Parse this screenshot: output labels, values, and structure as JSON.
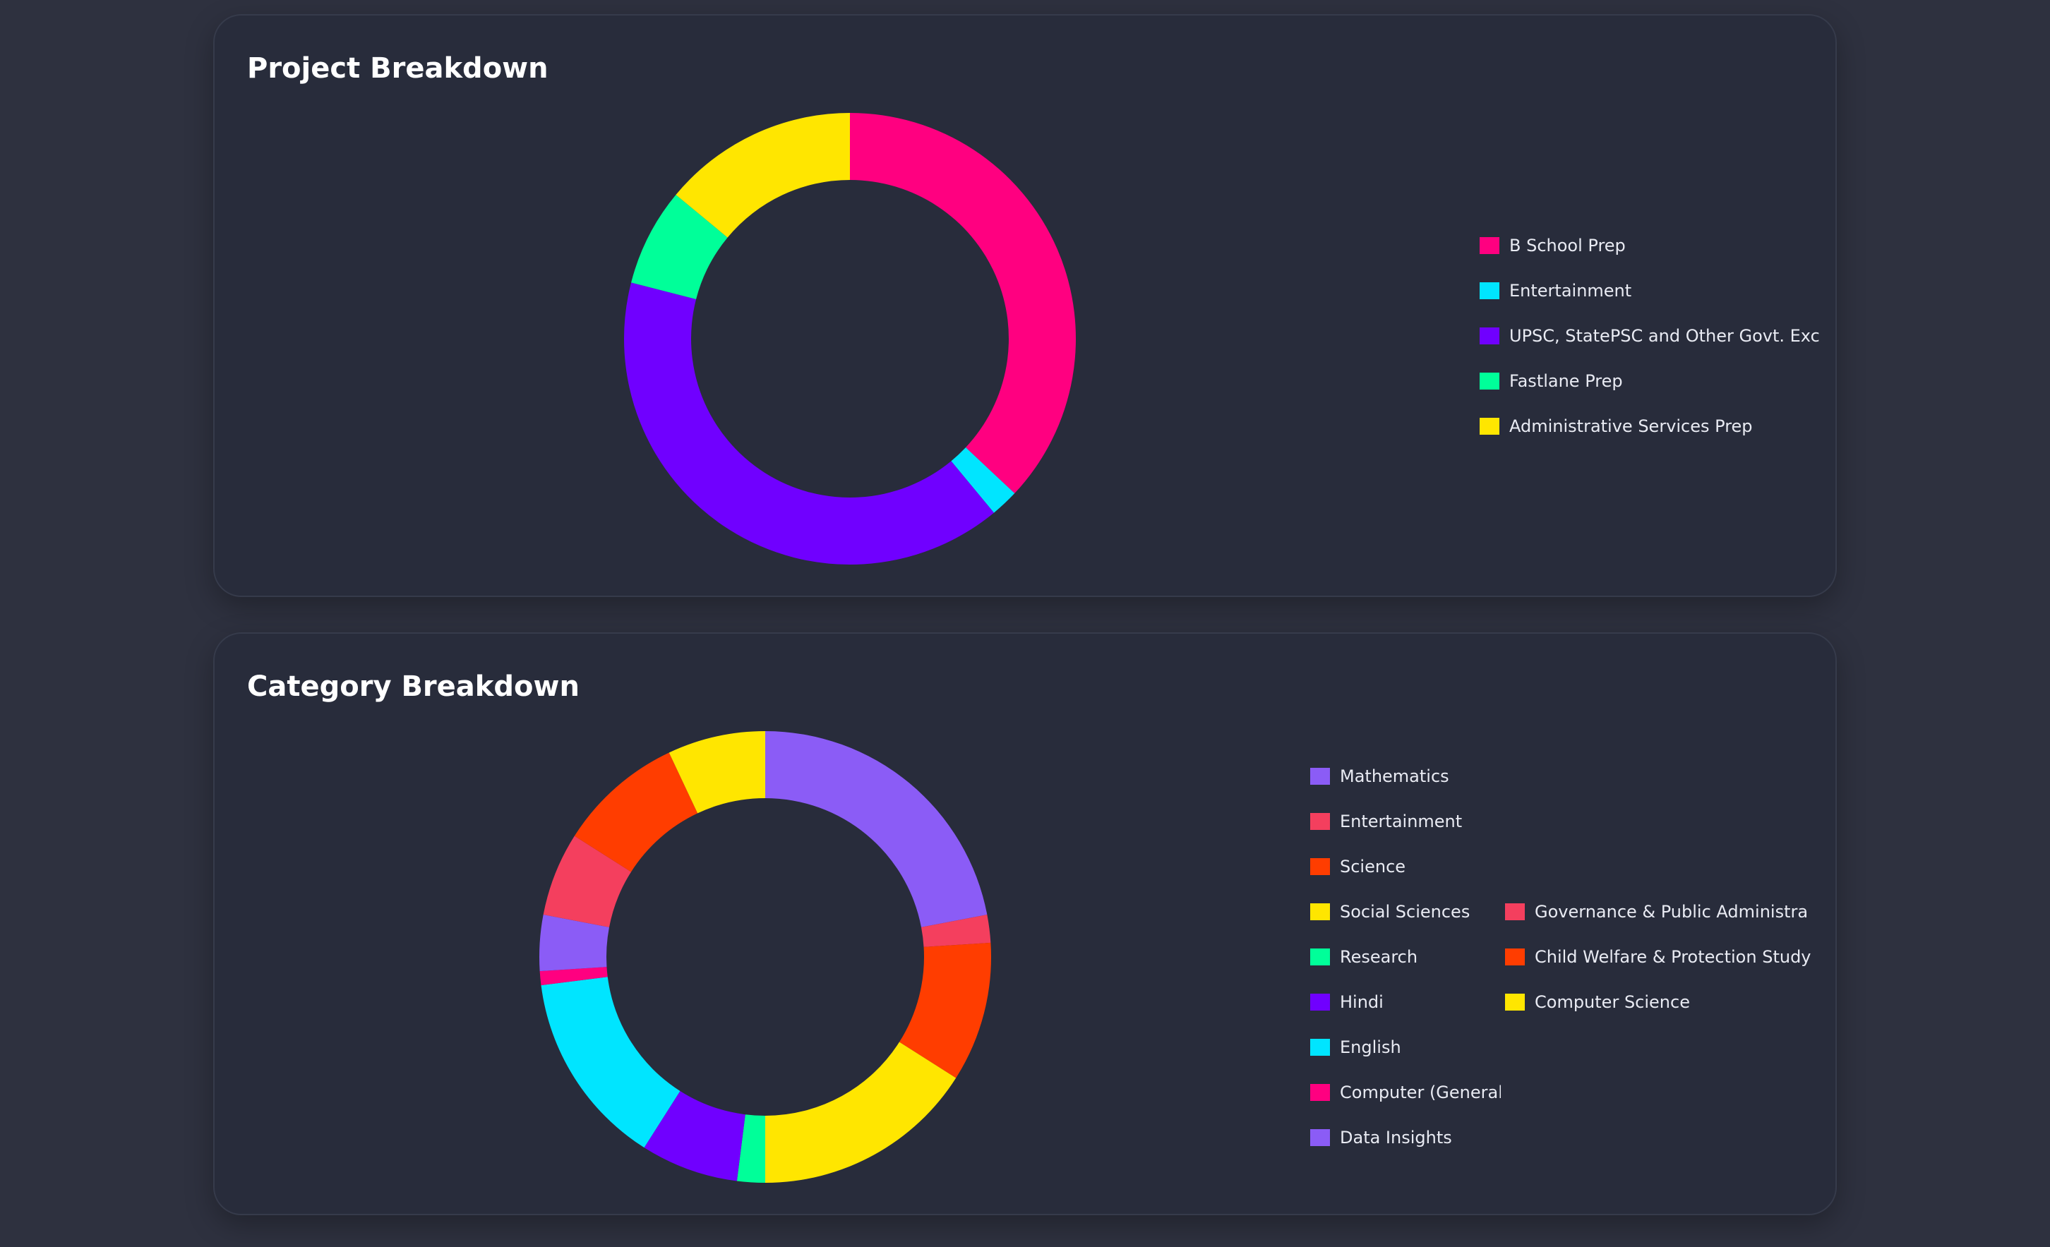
{
  "chart_data": [
    {
      "type": "pie",
      "donut": true,
      "title": "Project Breakdown",
      "categories": [
        "B School Prep",
        "Entertainment",
        "UPSC, StatePSC and Other Govt. Exc",
        "Fastlane Prep",
        "Administrative Services Prep"
      ],
      "values": [
        37,
        2,
        40,
        7,
        14
      ],
      "colors": [
        "#ff0080",
        "#00e5ff",
        "#7000ff",
        "#00ff99",
        "#ffe600"
      ],
      "legend_position": "right"
    },
    {
      "type": "pie",
      "donut": true,
      "title": "Category Breakdown",
      "categories": [
        "Mathematics",
        "Entertainment",
        "Science",
        "Social Sciences",
        "Research",
        "Hindi",
        "English",
        "Computer (General)",
        "Data Insights",
        "Governance & Public Administra",
        "Child Welfare & Protection Study",
        "Computer Science"
      ],
      "values": [
        22,
        2,
        10,
        16,
        2,
        7,
        14,
        1,
        4,
        6,
        9,
        7
      ],
      "colors": [
        "#8b5cf6",
        "#f43f5e",
        "#ff3d00",
        "#ffe600",
        "#00ff99",
        "#7000ff",
        "#00e5ff",
        "#ff0080",
        "#8b5cf6",
        "#f43f5e",
        "#ff3d00",
        "#ffe600"
      ],
      "legend_position": "right"
    }
  ]
}
